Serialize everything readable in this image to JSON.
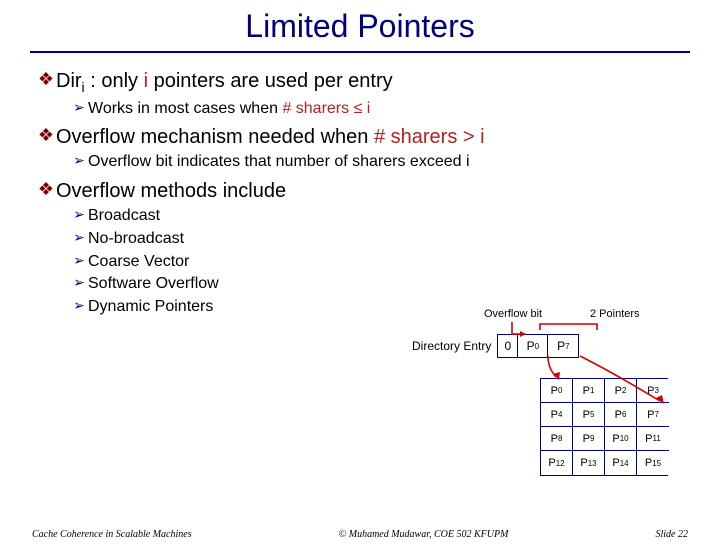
{
  "title": "Limited Pointers",
  "bullets": {
    "b1_pre": "Dir",
    "b1_sub": "i",
    "b1_mid": " : only ",
    "b1_i": "i",
    "b1_post": " pointers are used per entry",
    "b1a_pre": "Works in most cases when ",
    "b1a_accent": "# sharers ≤ i",
    "b2_pre": "Overflow mechanism needed when ",
    "b2_accent": "# sharers > i",
    "b2a": "Overflow bit indicates that number of sharers exceed i",
    "b3": "Overflow methods include",
    "b3a": "Broadcast",
    "b3b": "No-broadcast",
    "b3c": "Coarse Vector",
    "b3d": "Software Overflow",
    "b3e": "Dynamic Pointers"
  },
  "diagram": {
    "overflow_label": "Overflow bit",
    "two_ptr_label": "2 Pointers",
    "dir_label": "Directory Entry",
    "dir_cells": {
      "c0": "0",
      "c1_p": "P",
      "c1_s": "0",
      "c2_p": "P",
      "c2_s": "7"
    },
    "grid": [
      {
        "p": "P",
        "s": "0"
      },
      {
        "p": "P",
        "s": "1"
      },
      {
        "p": "P",
        "s": "2"
      },
      {
        "p": "P",
        "s": "3"
      },
      {
        "p": "P",
        "s": "4"
      },
      {
        "p": "P",
        "s": "5"
      },
      {
        "p": "P",
        "s": "6"
      },
      {
        "p": "P",
        "s": "7"
      },
      {
        "p": "P",
        "s": "8"
      },
      {
        "p": "P",
        "s": "9"
      },
      {
        "p": "P",
        "s": "10"
      },
      {
        "p": "P",
        "s": "11"
      },
      {
        "p": "P",
        "s": "12"
      },
      {
        "p": "P",
        "s": "13"
      },
      {
        "p": "P",
        "s": "14"
      },
      {
        "p": "P",
        "s": "15"
      }
    ],
    "colors": {
      "arrow": "#d40000",
      "box_border": "#000080"
    }
  },
  "footer": {
    "left": "Cache Coherence in Scalable Machines",
    "center": "© Muhamed Mudawar, COE 502 KFUPM",
    "right": "Slide 22"
  }
}
